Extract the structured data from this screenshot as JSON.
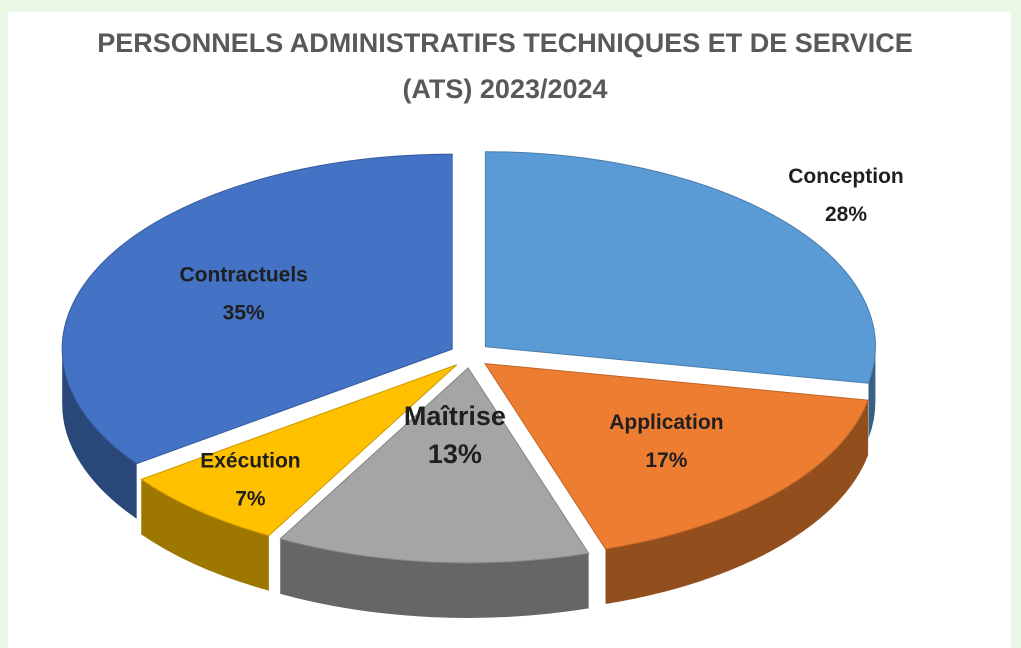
{
  "chart_data": {
    "type": "pie",
    "title": "PERSONNELS ADMINISTRATIFS TECHNIQUES ET DE SERVICE (ATS) 2023/2024",
    "categories": [
      "Conception",
      "Application",
      "Maîtrise",
      "Exécution",
      "Contractuels"
    ],
    "values": [
      28,
      17,
      13,
      7,
      35
    ],
    "value_labels": [
      "28%",
      "17%",
      "13%",
      "7%",
      "35%"
    ],
    "colors": [
      "#5b9bd5",
      "#ed7d31",
      "#a5a5a5",
      "#ffc000",
      "#4472c4"
    ]
  }
}
